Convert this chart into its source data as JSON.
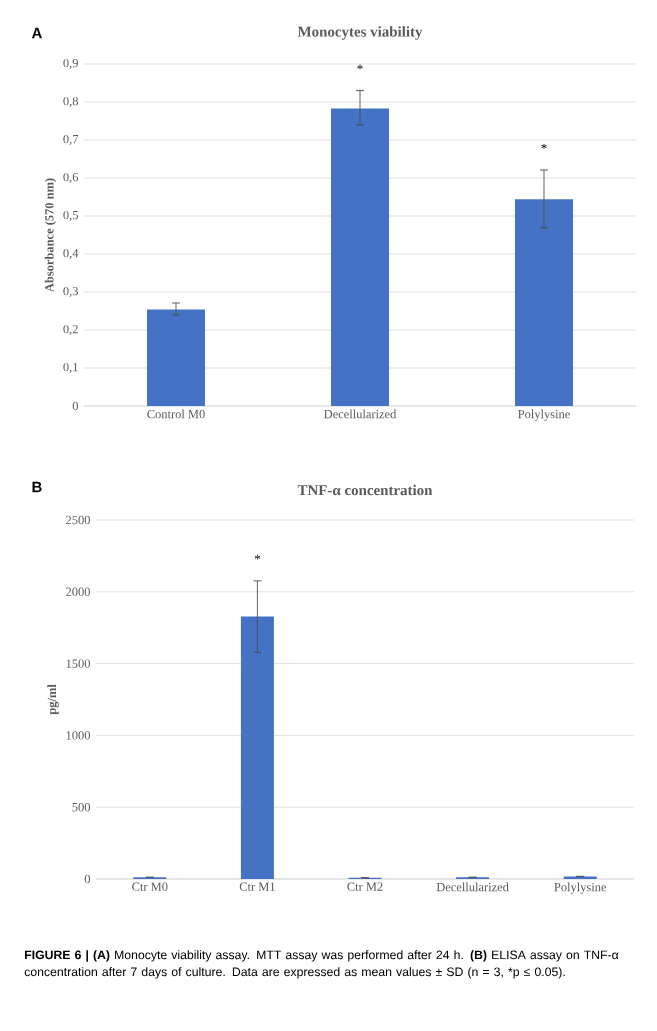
{
  "chart_data": [
    {
      "type": "bar",
      "title": "Monocytes viability",
      "ylabel": "Absorbance (570 nm)",
      "categories": [
        "Control M0",
        "Decellularized",
        "Polylysine"
      ],
      "values": [
        0.254,
        0.783,
        0.544
      ],
      "errors": [
        [
          0.24,
          0.271
        ],
        [
          0.74,
          0.83
        ],
        [
          0.469,
          0.621
        ]
      ],
      "color": "#4472c4",
      "ylim": [
        0,
        0.9
      ],
      "yticks": [
        0,
        {
          "value": 0.1,
          "label": "0,1"
        },
        {
          "value": 0.2,
          "label": "0,2"
        },
        {
          "value": 0.3,
          "label": "0,3"
        },
        {
          "value": 0.4,
          "label": "0,4"
        },
        {
          "value": 0.5,
          "label": "0,5"
        },
        {
          "value": 0.6,
          "label": "0,6"
        },
        {
          "value": 0.7,
          "label": "0,7"
        },
        {
          "value": 0.8,
          "label": "0,8"
        },
        {
          "value": 0.9,
          "label": "0,9"
        }
      ],
      "grid": "y",
      "annotations": [
        "A",
        "*",
        "*"
      ]
    },
    {
      "type": "bar",
      "title": "TNF-α concentration",
      "ylabel": "pg/ml",
      "categories": [
        "Ctr M0",
        "Ctr M1",
        "Ctr M2",
        "Decellularized",
        "Polylysine"
      ],
      "values": [
        12,
        1828,
        8,
        12,
        18
      ],
      "errors": [
        null,
        [
          1578,
          2076
        ],
        null,
        null,
        null
      ],
      "color": "#4472c4",
      "ylim": [
        0,
        2500
      ],
      "yticks": [
        0,
        500,
        1000,
        1500,
        2000,
        2500
      ],
      "grid": "y",
      "annotations": [
        "B",
        "*",
        "**FIGURE 6 | (A)** Monocyte viability assay. MTT assay was performed after 24 h. **(B)** ELISA assay on TNF-α concentration after 7 days of culture. Data are expressed as mean values ± SD (n = 3, *p ≤ 0.05)."
      ]
    }
  ]
}
